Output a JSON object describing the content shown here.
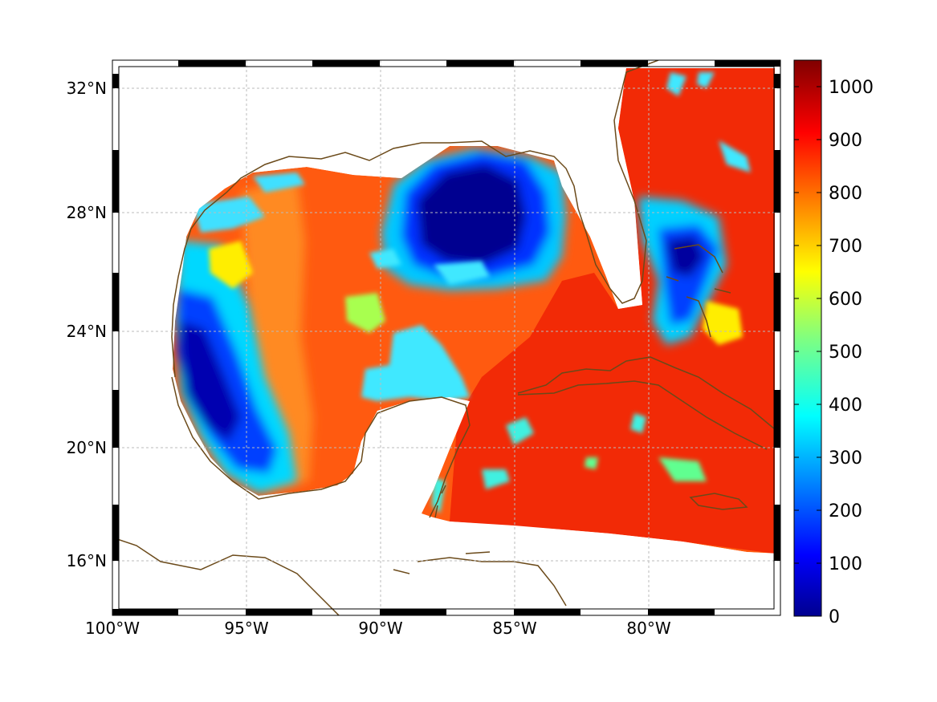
{
  "map": {
    "lon_ticks": [
      "100°W",
      "95°W",
      "90°W",
      "85°W",
      "80°W"
    ],
    "lat_ticks": [
      "32°N",
      "28°N",
      "24°N",
      "20°N",
      "16°N"
    ],
    "lon_range": [
      -100,
      -75
    ],
    "lat_range": [
      14.2,
      33
    ],
    "coastline_color": "#6b4a1a",
    "grid": "dotted"
  },
  "colorbar": {
    "colormap": "jet",
    "range": [
      0,
      1050
    ],
    "ticks": [
      "0",
      "100",
      "200",
      "300",
      "400",
      "500",
      "600",
      "700",
      "800",
      "900",
      "1000"
    ]
  }
}
